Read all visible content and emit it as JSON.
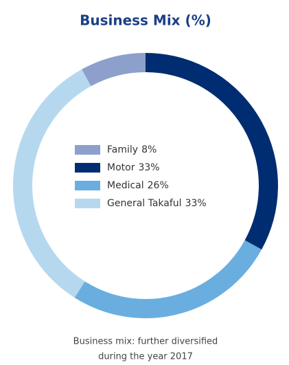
{
  "chart_data": {
    "type": "donut",
    "title": "Business Mix (%)",
    "categories": [
      "Family",
      "Motor",
      "Medical",
      "General Takaful"
    ],
    "values": [
      8,
      33,
      26,
      33
    ],
    "value_labels": [
      "8%",
      "33%",
      "26%",
      "33%"
    ],
    "colors": [
      "#8d9fcb",
      "#002d72",
      "#6aaee0",
      "#b5d8ef"
    ],
    "caption": [
      "Business mix: further diversified",
      "during the year 2017"
    ]
  }
}
